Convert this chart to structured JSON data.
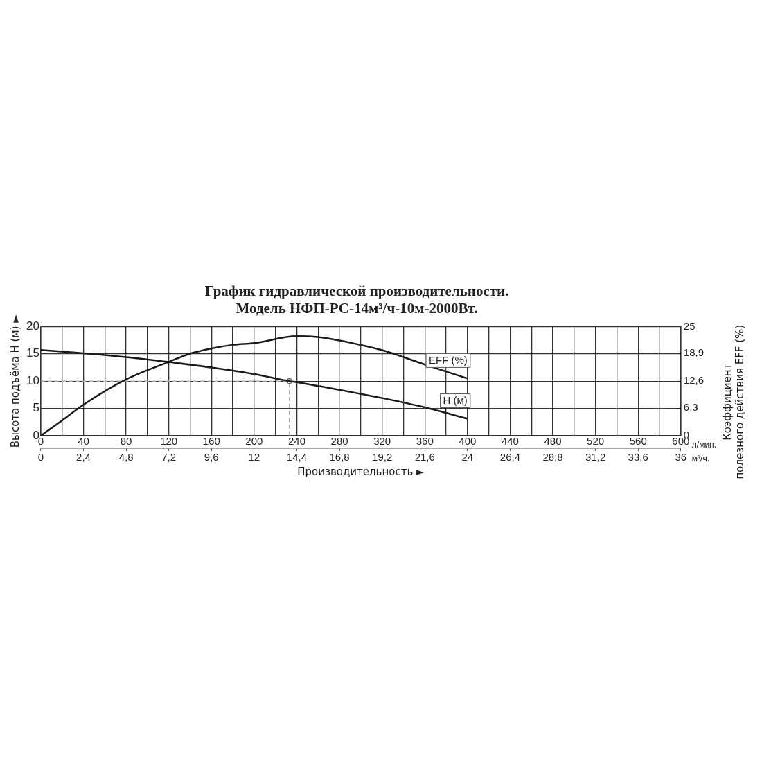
{
  "chart_data": {
    "type": "line",
    "title": "График гидравлической производительности.\nМодель НФП-РС-14м³/ч-10м-2000Вт.",
    "xlabel": "Производительность ►",
    "ylabel": "Высота подъёма H (м) ►",
    "y2label": "Коэффициент\nполезного действия EFF (%)",
    "xlim": [
      0,
      600
    ],
    "xticks": [
      0,
      {
        "value": 20,
        "label": null
      },
      40,
      {
        "value": 60,
        "label": null
      },
      80,
      {
        "value": 100,
        "label": null
      },
      120,
      {
        "value": 140,
        "label": null
      },
      160,
      {
        "value": 180,
        "label": null
      },
      200,
      {
        "value": 220,
        "label": null
      },
      240,
      {
        "value": 260,
        "label": null
      },
      280,
      {
        "value": 300,
        "label": null
      },
      320,
      {
        "value": 340,
        "label": null
      },
      360,
      {
        "value": 380,
        "label": null
      },
      400,
      {
        "value": 420,
        "label": null
      },
      440,
      {
        "value": 460,
        "label": null
      },
      480,
      {
        "value": 500,
        "label": null
      },
      520,
      {
        "value": 540,
        "label": null
      },
      560,
      {
        "value": 580,
        "label": null
      },
      600
    ],
    "x2lim": [
      0,
      36
    ],
    "x2ticks": [
      0,
      {
        "value": 2.4,
        "label": "2,4"
      },
      {
        "value": 4.8,
        "label": "4,8"
      },
      {
        "value": 7.2,
        "label": "7,2"
      },
      {
        "value": 9.6,
        "label": "9,6"
      },
      12,
      {
        "value": 14.4,
        "label": "14,4"
      },
      {
        "value": 16.8,
        "label": "16,8"
      },
      {
        "value": 19.2,
        "label": "19,2"
      },
      {
        "value": 21.6,
        "label": "21,6"
      },
      24,
      {
        "value": 26.4,
        "label": "26,4"
      },
      {
        "value": 28.8,
        "label": "28,8"
      },
      {
        "value": 31.2,
        "label": "31,2"
      },
      {
        "value": 33.6,
        "label": "33,6"
      },
      36
    ],
    "ylim": [
      0,
      20
    ],
    "yticks": [
      0,
      5,
      10,
      15,
      20
    ],
    "y2lim": [
      0,
      25
    ],
    "y2ticks": [
      0,
      {
        "value": 6.3,
        "label": "6,3"
      },
      {
        "value": 12.6,
        "label": "12,6"
      },
      {
        "value": 18.9,
        "label": "18,9"
      },
      25
    ],
    "series": [
      {
        "name": "H (м)",
        "color": "#1a1a1a",
        "x": [
          0,
          40,
          80,
          120,
          160,
          200,
          233,
          240,
          280,
          320,
          360,
          400
        ],
        "values": [
          15.7,
          15.1,
          14.4,
          13.5,
          12.5,
          11.3,
          10,
          9.8,
          8.4,
          6.9,
          5.2,
          3.1
        ]
      },
      {
        "name": "EFF (%)",
        "axis": "y2",
        "color": "#1a1a1a",
        "x": [
          0,
          20,
          40,
          80,
          120,
          140,
          160,
          180,
          200,
          240,
          260,
          280,
          320,
          360,
          400
        ],
        "values": [
          0,
          3.5,
          7.1,
          12.9,
          16.9,
          18.8,
          20,
          20.8,
          21.2,
          22.8,
          22.6,
          21.8,
          19.6,
          16.3,
          13.1
        ]
      },
      {
        "type": "scatter",
        "marker": "circle",
        "color": "#555555",
        "x": [
          233
        ],
        "values": [
          10
        ]
      }
    ],
    "ref_lines": [
      {
        "axis": "y",
        "value": 10,
        "color": "#aaaaaa",
        "line_style": "dashed"
      },
      {
        "axis": "x",
        "value": 233,
        "color": "#aaaaaa",
        "line_style": "dashed"
      }
    ],
    "annotations": [
      "л/мин.",
      "м³/ч."
    ],
    "grid": true,
    "legend": false
  }
}
